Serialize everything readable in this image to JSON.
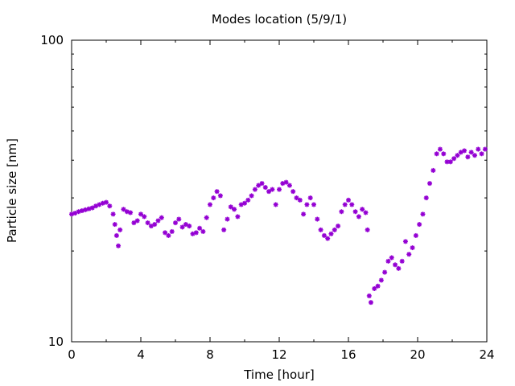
{
  "chart_data": {
    "type": "scatter",
    "title": "Modes location (5/9/1)",
    "xlabel": "Time [hour]",
    "ylabel": "Particle size [nm]",
    "xlim": [
      0,
      24
    ],
    "ylim": [
      10,
      100
    ],
    "y_scale": "log",
    "grid": false,
    "marker": "asterisk",
    "color": "#9400d3",
    "x_ticks": [
      0,
      4,
      8,
      12,
      16,
      20,
      24
    ],
    "x_tick_labels": [
      "0",
      "4",
      "8",
      "12",
      "16",
      "20",
      "24"
    ],
    "y_ticks": [
      10,
      100
    ],
    "y_tick_labels": [
      "10",
      "100"
    ],
    "series": [
      {
        "x": [
          0.0,
          0.2,
          0.4,
          0.6,
          0.8,
          1.0,
          1.2,
          1.4,
          1.6,
          1.8,
          2.0,
          2.2,
          2.4,
          2.5,
          2.6,
          2.7,
          2.8,
          3.0,
          3.2,
          3.4,
          3.6,
          3.8,
          4.0,
          4.2,
          4.4,
          4.6,
          4.8,
          5.0,
          5.2,
          5.4,
          5.6,
          5.8,
          6.0,
          6.2,
          6.4,
          6.6,
          6.8,
          7.0,
          7.2,
          7.4,
          7.6,
          7.8,
          8.0,
          8.2,
          8.4,
          8.6,
          8.8,
          9.0,
          9.2,
          9.4,
          9.6,
          9.8,
          10.0,
          10.2,
          10.4,
          10.6,
          10.8,
          11.0,
          11.2,
          11.4,
          11.6,
          11.8,
          12.0,
          12.2,
          12.4,
          12.6,
          12.8,
          13.0,
          13.2,
          13.4,
          13.6,
          13.8,
          14.0,
          14.2,
          14.4,
          14.6,
          14.8,
          15.0,
          15.2,
          15.4,
          15.6,
          15.8,
          16.0,
          16.2,
          16.4,
          16.6,
          16.8,
          17.0,
          17.1,
          17.2,
          17.3,
          17.5,
          17.7,
          17.9,
          18.1,
          18.3,
          18.5,
          18.7,
          18.9,
          19.1,
          19.3,
          19.5,
          19.7,
          19.9,
          20.1,
          20.3,
          20.5,
          20.7,
          20.9,
          21.1,
          21.3,
          21.5,
          21.7,
          21.9,
          22.1,
          22.3,
          22.5,
          22.7,
          22.9,
          23.1,
          23.3,
          23.5,
          23.7,
          23.9
        ],
        "y": [
          26.5,
          26.7,
          27.0,
          27.2,
          27.4,
          27.6,
          27.8,
          28.2,
          28.5,
          28.8,
          29.0,
          28.2,
          26.5,
          24.5,
          22.5,
          20.8,
          23.5,
          27.5,
          27.0,
          26.8,
          24.8,
          25.2,
          26.5,
          26.0,
          24.8,
          24.2,
          24.5,
          25.2,
          25.8,
          23.0,
          22.5,
          23.2,
          24.8,
          25.5,
          24.0,
          24.5,
          24.2,
          22.8,
          23.0,
          23.8,
          23.2,
          25.8,
          28.5,
          30.0,
          31.5,
          30.5,
          23.5,
          25.5,
          28.0,
          27.5,
          26.0,
          28.5,
          28.8,
          29.5,
          30.5,
          32.0,
          33.0,
          33.5,
          32.5,
          31.5,
          32.0,
          28.5,
          32.0,
          33.5,
          33.8,
          33.0,
          31.5,
          30.0,
          29.5,
          26.5,
          28.5,
          30.0,
          28.5,
          25.5,
          23.5,
          22.5,
          22.0,
          22.8,
          23.5,
          24.2,
          27.0,
          28.5,
          29.5,
          28.5,
          27.0,
          26.0,
          27.5,
          26.8,
          23.5,
          14.2,
          13.5,
          15.0,
          15.3,
          16.0,
          17.0,
          18.5,
          19.0,
          18.0,
          17.5,
          18.5,
          21.5,
          19.5,
          20.5,
          22.5,
          24.5,
          26.5,
          30.0,
          33.5,
          37.0,
          42.0,
          43.5,
          42.0,
          39.5,
          39.5,
          40.5,
          41.5,
          42.5,
          43.0,
          41.0,
          42.5,
          41.5,
          43.5,
          42.0,
          43.5
        ]
      }
    ]
  }
}
